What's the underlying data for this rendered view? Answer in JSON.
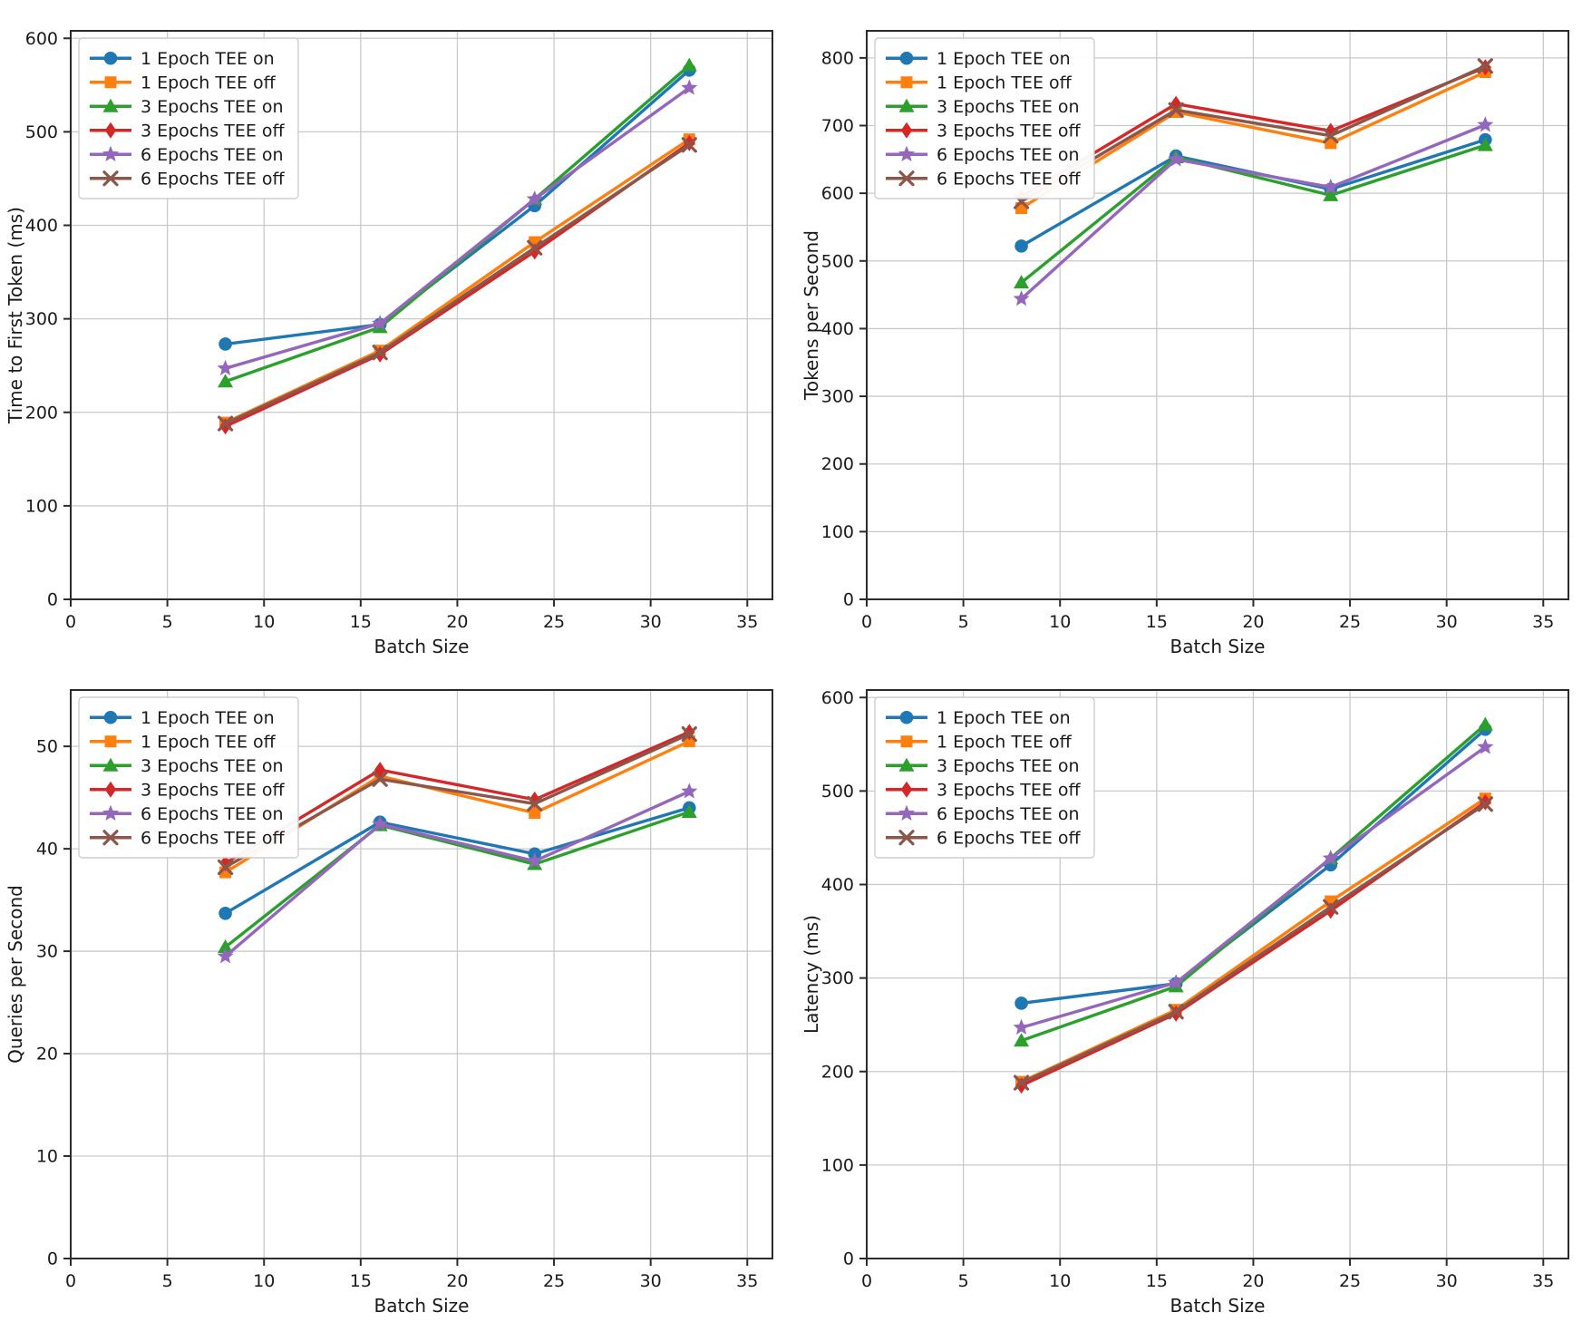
{
  "figure": {
    "background": "#ffffff",
    "grid_color": "#c9c9c9",
    "spine_color": "#2b2b2b",
    "text_color": "#1a1a1a",
    "legend_border_color": "#cccccc",
    "legend_background": "#ffffff"
  },
  "legend_entries": [
    {
      "label": "1 Epoch TEE on",
      "color": "#1f77b4",
      "marker": "circle"
    },
    {
      "label": "1 Epoch TEE off",
      "color": "#ff7f0e",
      "marker": "square"
    },
    {
      "label": "3 Epochs TEE on",
      "color": "#2ca02c",
      "marker": "triangle"
    },
    {
      "label": "3 Epochs TEE off",
      "color": "#d62728",
      "marker": "diamond"
    },
    {
      "label": "6 Epochs TEE on",
      "color": "#9467bd",
      "marker": "star"
    },
    {
      "label": "6 Epochs TEE off",
      "color": "#8c564b",
      "marker": "x"
    }
  ],
  "chart_data": [
    {
      "type": "line",
      "title": "",
      "xlabel": "Batch Size",
      "ylabel": "Time to First Token (ms)",
      "x": [
        8,
        16,
        24,
        32
      ],
      "xlim": [
        0,
        36.3
      ],
      "ylim": [
        0,
        608
      ],
      "xticks": [
        0,
        5,
        10,
        15,
        20,
        25,
        30,
        35
      ],
      "yticks": [
        0,
        100,
        200,
        300,
        400,
        500,
        600
      ],
      "grid": true,
      "legend_position": "upper left",
      "series": [
        {
          "name": "1 Epoch TEE on",
          "color": "#1f77b4",
          "marker": "circle",
          "values": [
            273,
            294,
            421,
            566
          ]
        },
        {
          "name": "1 Epoch TEE off",
          "color": "#ff7f0e",
          "marker": "square",
          "values": [
            189,
            266,
            382,
            492
          ]
        },
        {
          "name": "3 Epochs TEE on",
          "color": "#2ca02c",
          "marker": "triangle",
          "values": [
            233,
            291,
            428,
            571
          ]
        },
        {
          "name": "3 Epochs TEE off",
          "color": "#d62728",
          "marker": "diamond",
          "values": [
            185,
            262,
            372,
            488
          ]
        },
        {
          "name": "6 Epochs TEE on",
          "color": "#9467bd",
          "marker": "star",
          "values": [
            247,
            295,
            428,
            547
          ]
        },
        {
          "name": "6 Epochs TEE off",
          "color": "#8c564b",
          "marker": "x",
          "values": [
            188,
            264,
            376,
            486
          ]
        }
      ]
    },
    {
      "type": "line",
      "title": "",
      "xlabel": "Batch Size",
      "ylabel": "Tokens per Second",
      "x": [
        8,
        16,
        24,
        32
      ],
      "xlim": [
        0,
        36.3
      ],
      "ylim": [
        0,
        840
      ],
      "xticks": [
        0,
        5,
        10,
        15,
        20,
        25,
        30,
        35
      ],
      "yticks": [
        0,
        100,
        200,
        300,
        400,
        500,
        600,
        700,
        800
      ],
      "grid": true,
      "legend_position": "upper left",
      "series": [
        {
          "name": "1 Epoch TEE on",
          "color": "#1f77b4",
          "marker": "circle",
          "values": [
            522,
            655,
            606,
            679
          ]
        },
        {
          "name": "1 Epoch TEE off",
          "color": "#ff7f0e",
          "marker": "square",
          "values": [
            578,
            720,
            674,
            779
          ]
        },
        {
          "name": "3 Epochs TEE on",
          "color": "#2ca02c",
          "marker": "triangle",
          "values": [
            468,
            653,
            597,
            671
          ]
        },
        {
          "name": "3 Epochs TEE off",
          "color": "#d62728",
          "marker": "diamond",
          "values": [
            595,
            732,
            692,
            786
          ]
        },
        {
          "name": "6 Epochs TEE on",
          "color": "#9467bd",
          "marker": "star",
          "values": [
            444,
            650,
            609,
            701
          ]
        },
        {
          "name": "6 Epochs TEE off",
          "color": "#8c564b",
          "marker": "x",
          "values": [
            588,
            723,
            685,
            788
          ]
        }
      ]
    },
    {
      "type": "line",
      "title": "",
      "xlabel": "Batch Size",
      "ylabel": "Queries per Second",
      "x": [
        8,
        16,
        24,
        32
      ],
      "xlim": [
        0,
        36.3
      ],
      "ylim": [
        0,
        55.5
      ],
      "xticks": [
        0,
        5,
        10,
        15,
        20,
        25,
        30,
        35
      ],
      "yticks": [
        0,
        10,
        20,
        30,
        40,
        50
      ],
      "grid": true,
      "legend_position": "upper left",
      "series": [
        {
          "name": "1 Epoch TEE on",
          "color": "#1f77b4",
          "marker": "circle",
          "values": [
            33.7,
            42.6,
            39.5,
            44.0
          ]
        },
        {
          "name": "1 Epoch TEE off",
          "color": "#ff7f0e",
          "marker": "square",
          "values": [
            37.7,
            47.1,
            43.5,
            50.5
          ]
        },
        {
          "name": "3 Epochs TEE on",
          "color": "#2ca02c",
          "marker": "triangle",
          "values": [
            30.4,
            42.3,
            38.5,
            43.6
          ]
        },
        {
          "name": "3 Epochs TEE off",
          "color": "#d62728",
          "marker": "diamond",
          "values": [
            38.6,
            47.7,
            44.8,
            51.4
          ]
        },
        {
          "name": "6 Epochs TEE on",
          "color": "#9467bd",
          "marker": "star",
          "values": [
            29.5,
            42.4,
            38.8,
            45.6
          ]
        },
        {
          "name": "6 Epochs TEE off",
          "color": "#8c564b",
          "marker": "x",
          "values": [
            38.2,
            46.8,
            44.4,
            51.2
          ]
        }
      ]
    },
    {
      "type": "line",
      "title": "",
      "xlabel": "Batch Size",
      "ylabel": "Latency (ms)",
      "x": [
        8,
        16,
        24,
        32
      ],
      "xlim": [
        0,
        36.3
      ],
      "ylim": [
        0,
        608
      ],
      "xticks": [
        0,
        5,
        10,
        15,
        20,
        25,
        30,
        35
      ],
      "yticks": [
        0,
        100,
        200,
        300,
        400,
        500,
        600
      ],
      "grid": true,
      "legend_position": "upper left",
      "series": [
        {
          "name": "1 Epoch TEE on",
          "color": "#1f77b4",
          "marker": "circle",
          "values": [
            273,
            294,
            421,
            566
          ]
        },
        {
          "name": "1 Epoch TEE off",
          "color": "#ff7f0e",
          "marker": "square",
          "values": [
            189,
            266,
            382,
            492
          ]
        },
        {
          "name": "3 Epochs TEE on",
          "color": "#2ca02c",
          "marker": "triangle",
          "values": [
            233,
            291,
            428,
            571
          ]
        },
        {
          "name": "3 Epochs TEE off",
          "color": "#d62728",
          "marker": "diamond",
          "values": [
            185,
            262,
            372,
            488
          ]
        },
        {
          "name": "6 Epochs TEE on",
          "color": "#9467bd",
          "marker": "star",
          "values": [
            247,
            295,
            428,
            547
          ]
        },
        {
          "name": "6 Epochs TEE off",
          "color": "#8c564b",
          "marker": "x",
          "values": [
            188,
            264,
            376,
            486
          ]
        }
      ]
    }
  ]
}
